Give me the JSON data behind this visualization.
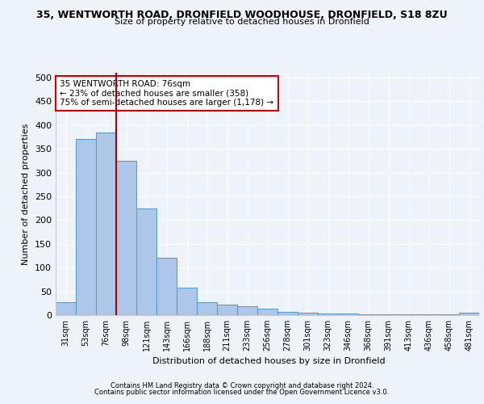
{
  "title_line1": "35, WENTWORTH ROAD, DRONFIELD WOODHOUSE, DRONFIELD, S18 8ZU",
  "title_line2": "Size of property relative to detached houses in Dronfield",
  "xlabel": "Distribution of detached houses by size in Dronfield",
  "ylabel": "Number of detached properties",
  "footer_line1": "Contains HM Land Registry data © Crown copyright and database right 2024.",
  "footer_line2": "Contains public sector information licensed under the Open Government Licence v3.0.",
  "bar_labels": [
    "31sqm",
    "53sqm",
    "76sqm",
    "98sqm",
    "121sqm",
    "143sqm",
    "166sqm",
    "188sqm",
    "211sqm",
    "233sqm",
    "256sqm",
    "278sqm",
    "301sqm",
    "323sqm",
    "346sqm",
    "368sqm",
    "391sqm",
    "413sqm",
    "436sqm",
    "458sqm",
    "481sqm"
  ],
  "bar_values": [
    28,
    370,
    385,
    325,
    225,
    120,
    58,
    28,
    22,
    18,
    14,
    7,
    5,
    4,
    3,
    2,
    1,
    1,
    1,
    1,
    5
  ],
  "bar_color": "#aec6e8",
  "bar_edge_color": "#5a9fd4",
  "vline_x_index": 2,
  "vline_color": "#aa0000",
  "ylim": [
    0,
    510
  ],
  "yticks": [
    0,
    50,
    100,
    150,
    200,
    250,
    300,
    350,
    400,
    450,
    500
  ],
  "annotation_text": "35 WENTWORTH ROAD: 76sqm\n← 23% of detached houses are smaller (358)\n75% of semi-detached houses are larger (1,178) →",
  "annotation_box_color": "#ffffff",
  "annotation_box_edge": "#cc0000",
  "bg_color": "#eef2f9",
  "plot_bg_color": "#eef2f9",
  "grid_color": "#ffffff"
}
